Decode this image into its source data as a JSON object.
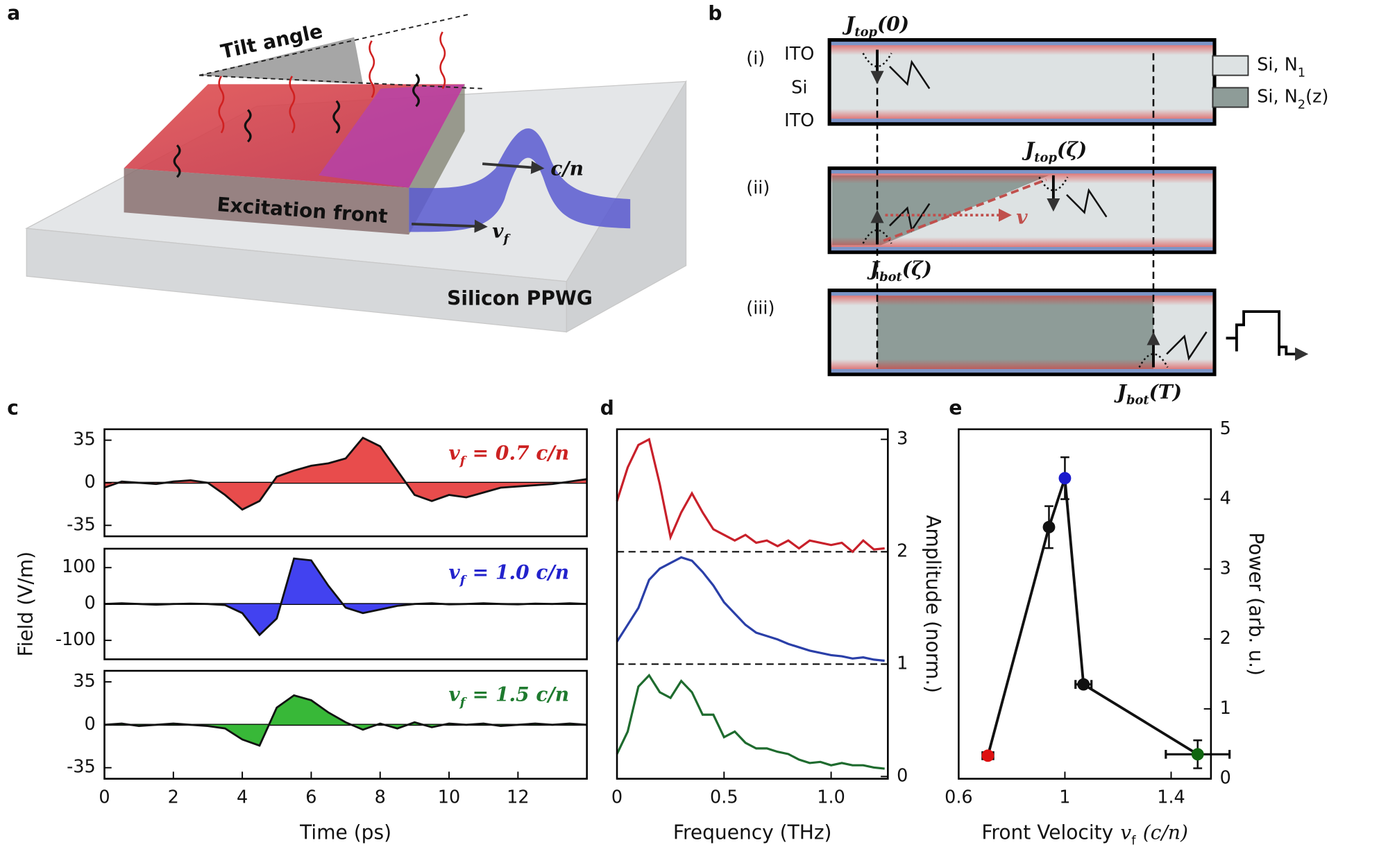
{
  "panel_labels": [
    "a",
    "b",
    "c",
    "d",
    "e"
  ],
  "diagram_a": {
    "tilt": "Tilt angle",
    "speed": "c/n",
    "front": "Excitation front",
    "front_velocity": {
      "var": "v",
      "sub": "f"
    },
    "substrate": "Silicon PPWG"
  },
  "diagram_b": {
    "rows": [
      "(i)",
      "(ii)",
      "(iii)"
    ],
    "layers": [
      "ITO",
      "Si",
      "ITO"
    ],
    "currents": [
      {
        "symbol": "J",
        "subscript": "top",
        "argument": "(0)"
      },
      {
        "symbol": "J",
        "subscript": "top",
        "argument": "(ζ)"
      },
      {
        "symbol": "J",
        "subscript": "bot",
        "argument": "(ζ)"
      },
      {
        "symbol": "J",
        "subscript": "bot",
        "argument": "(T)"
      }
    ],
    "velocity": "v",
    "legend": [
      {
        "text": "Si, N",
        "subscript": "1"
      },
      {
        "text": "Si, N",
        "subscript": "2",
        "suffix": "(z)"
      }
    ]
  },
  "chart_data": [
    {
      "type": "area",
      "label": {
        "var": "v",
        "sub": "f",
        "text": "= 0.7 c/n"
      },
      "color": "#e84c4c",
      "label_color": "#cc2222",
      "x": [
        0,
        0.5,
        1,
        1.5,
        2,
        2.5,
        3,
        3.5,
        4,
        4.5,
        5,
        5.5,
        6,
        6.5,
        7,
        7.5,
        8,
        8.5,
        9,
        9.5,
        10,
        10.5,
        11,
        11.5,
        12,
        12.5,
        13,
        13.5,
        14
      ],
      "values": [
        -4,
        1,
        0,
        -1,
        1,
        2,
        0,
        -10,
        -22,
        -15,
        5,
        10,
        14,
        16,
        20,
        37,
        30,
        10,
        -10,
        -15,
        -10,
        -12,
        -8,
        -4,
        -3,
        -2,
        -1,
        1,
        3
      ],
      "xlim": [
        0,
        14
      ],
      "ylim": [
        -44,
        44
      ],
      "yticks": [
        35,
        0,
        -35
      ]
    },
    {
      "type": "area",
      "label": {
        "var": "v",
        "sub": "f",
        "text": "= 1.0 c/n"
      },
      "color": "#4242f0",
      "label_color": "#2222cc",
      "x": [
        0,
        0.5,
        1,
        1.5,
        2,
        2.5,
        3,
        3.5,
        4,
        4.5,
        5,
        5.5,
        6,
        6.5,
        7,
        7.5,
        8,
        8.5,
        9,
        9.5,
        10,
        10.5,
        11,
        11.5,
        12,
        12.5,
        13,
        13.5,
        14
      ],
      "values": [
        0,
        2,
        0,
        -2,
        0,
        1,
        0,
        -3,
        -25,
        -85,
        -40,
        125,
        120,
        50,
        -10,
        -25,
        -15,
        -5,
        0,
        2,
        -1,
        0,
        2,
        0,
        -1,
        1,
        0,
        2,
        0
      ],
      "xlim": [
        0,
        14
      ],
      "ylim": [
        -152,
        152
      ],
      "yticks": [
        100,
        0,
        -100
      ],
      "ylabel": "Field (V/m)"
    },
    {
      "type": "area",
      "label": {
        "var": "v",
        "sub": "f",
        "text": "= 1.5 c/n"
      },
      "color": "#38b838",
      "label_color": "#1e7a2e",
      "x": [
        0,
        0.5,
        1,
        1.5,
        2,
        2.5,
        3,
        3.5,
        4,
        4.5,
        5,
        5.5,
        6,
        6.5,
        7,
        7.5,
        8,
        8.5,
        9,
        9.5,
        10,
        10.5,
        11,
        11.5,
        12,
        12.5,
        13,
        13.5,
        14
      ],
      "values": [
        0,
        1,
        -1,
        0,
        1,
        0,
        -1,
        -3,
        -12,
        -17,
        14,
        24,
        20,
        10,
        2,
        -4,
        1,
        -3,
        2,
        -2,
        1,
        0,
        1,
        -1,
        0,
        1,
        0,
        1,
        0
      ],
      "xlim": [
        0,
        14
      ],
      "ylim": [
        -44,
        44
      ],
      "yticks": [
        35,
        0,
        -35
      ],
      "xticks": [
        0,
        2,
        4,
        6,
        8,
        10,
        12
      ],
      "xlabel": "Time (ps)"
    },
    {
      "type": "line",
      "xlim": [
        0,
        1.265
      ],
      "ylim": [
        -0.02,
        3.09
      ],
      "y_axis_side": "right",
      "xticks": [
        0,
        0.5,
        {
          "value": 1,
          "label": "1.0"
        }
      ],
      "yticks": [
        0,
        1,
        2,
        3
      ],
      "hlines": [
        1,
        2
      ],
      "xlabel": "Frequency (THz)",
      "ylabel": "Amplitude (norm.)",
      "x": [
        0,
        0.05,
        0.1,
        0.15,
        0.2,
        0.25,
        0.3,
        0.35,
        0.4,
        0.45,
        0.5,
        0.55,
        0.6,
        0.65,
        0.7,
        0.75,
        0.8,
        0.85,
        0.9,
        0.95,
        1.0,
        1.05,
        1.1,
        1.15,
        1.2,
        1.25
      ],
      "series": [
        {
          "color": "#c8202a",
          "values": [
            2.45,
            2.75,
            2.95,
            3.0,
            2.6,
            2.13,
            2.35,
            2.52,
            2.35,
            2.2,
            2.15,
            2.1,
            2.15,
            2.08,
            2.1,
            2.05,
            2.1,
            2.03,
            2.1,
            2.08,
            2.06,
            2.08,
            2.0,
            2.1,
            2.02,
            2.03
          ]
        },
        {
          "color": "#2a3fa8",
          "values": [
            1.2,
            1.35,
            1.5,
            1.75,
            1.85,
            1.9,
            1.95,
            1.92,
            1.82,
            1.7,
            1.55,
            1.45,
            1.35,
            1.28,
            1.25,
            1.22,
            1.18,
            1.15,
            1.12,
            1.1,
            1.08,
            1.07,
            1.05,
            1.06,
            1.04,
            1.03
          ]
        },
        {
          "color": "#1e6b2e",
          "values": [
            0.2,
            0.4,
            0.8,
            0.9,
            0.75,
            0.7,
            0.85,
            0.75,
            0.55,
            0.55,
            0.35,
            0.4,
            0.3,
            0.25,
            0.25,
            0.22,
            0.2,
            0.15,
            0.12,
            0.13,
            0.1,
            0.12,
            0.1,
            0.1,
            0.08,
            0.07
          ]
        }
      ]
    },
    {
      "type": "scatter",
      "xlim": [
        0.6,
        1.55
      ],
      "ylim": [
        0,
        5
      ],
      "y_axis_side": "right",
      "xticks": [
        0.6,
        1,
        1.4
      ],
      "yticks": [
        0,
        1,
        2,
        3,
        4,
        5
      ],
      "xlabel": {
        "text": "Front Velocity",
        "var": "v",
        "sub": "f",
        "unit": "(c/n)"
      },
      "ylabel": "Power (arb. u.)",
      "x": [
        0.71,
        0.94,
        1.0,
        1.07,
        1.5
      ],
      "values": [
        0.33,
        3.6,
        4.3,
        1.35,
        0.35
      ],
      "xerr": [
        0.02,
        null,
        null,
        0.03,
        0.12
      ],
      "yerr": [
        null,
        0.3,
        0.3,
        null,
        0.2
      ],
      "colors": [
        "#dd1111",
        "#111111",
        "#1a1acc",
        "#111111",
        "#116611"
      ],
      "line_color": "#111111"
    }
  ]
}
